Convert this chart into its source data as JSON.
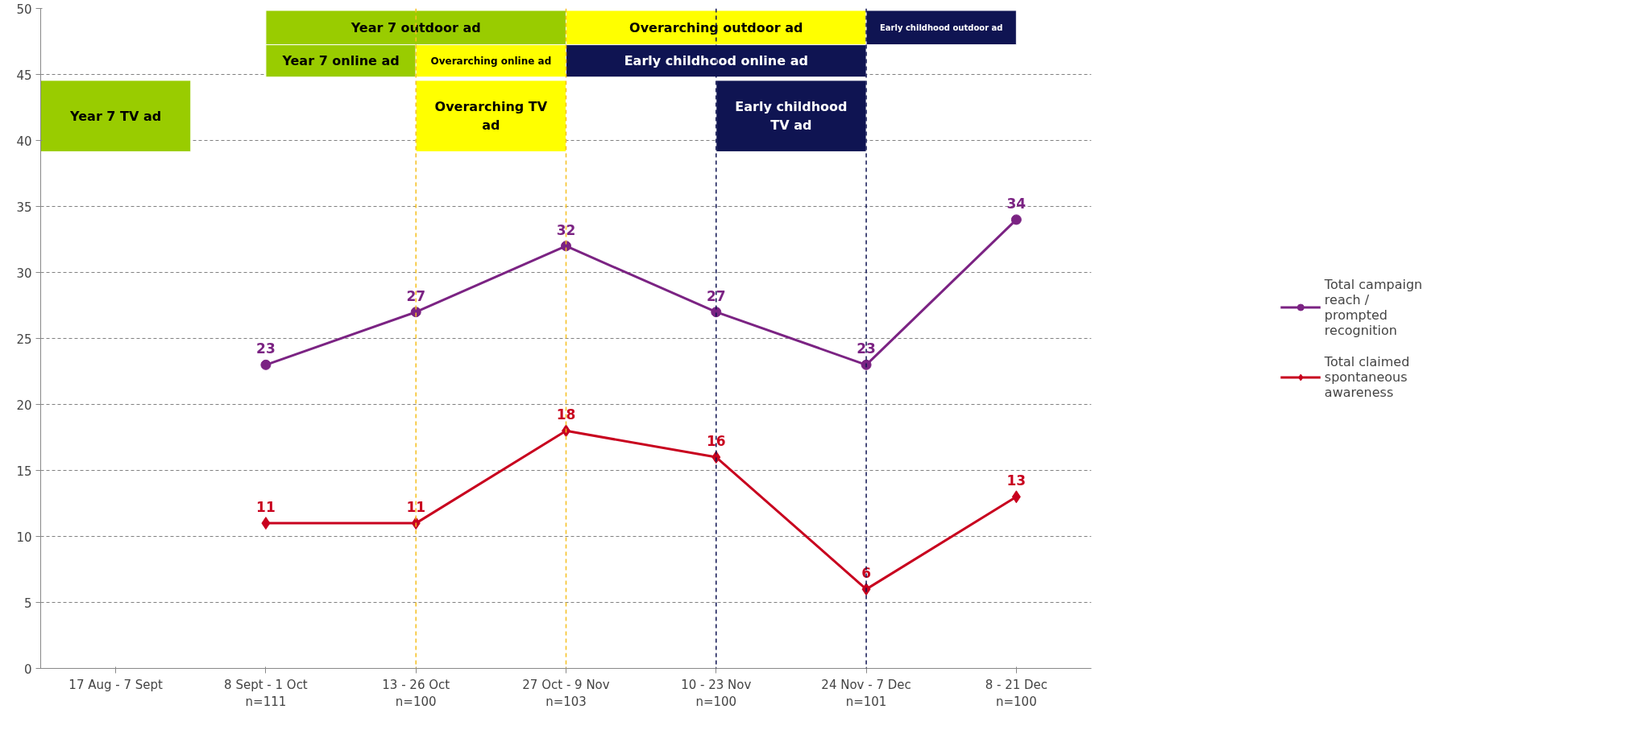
{
  "chart_data": {
    "type": "line",
    "categories": [
      "17 Aug - 7 Sept",
      "8 Sept - 1 Oct\nn=111",
      "13 - 26 Oct\nn=100",
      "27 Oct - 9 Nov\nn=103",
      "10 - 23 Nov\nn=100",
      "24 Nov - 7 Dec\nn=101",
      "8 - 21 Dec\nn=100"
    ],
    "ylim": [
      0,
      50
    ],
    "yticks": [
      0,
      5,
      10,
      15,
      20,
      25,
      30,
      35,
      40,
      45,
      50
    ],
    "grid": "y",
    "legend": "right",
    "data_labels": true,
    "line_style": "solid",
    "series": [
      {
        "name": "Total campaign reach / prompted recognition",
        "color": "#7b2383",
        "marker": "circle",
        "values": [
          null,
          23,
          27,
          32,
          27,
          23,
          34
        ]
      },
      {
        "name": "Total claimed spontaneous awareness",
        "color": "#c8001e",
        "marker": "diamond",
        "values": [
          null,
          11,
          11,
          18,
          16,
          6,
          13
        ]
      }
    ],
    "bands": [
      {
        "axis": "x",
        "from": "8 Sept - 1 Oct\nn=111",
        "to": "27 Oct - 9 Nov\nn=103",
        "label": "Year 7 outdoor ad",
        "color": "#99cc00"
      },
      {
        "axis": "x",
        "from": "27 Oct - 9 Nov\nn=103",
        "to": "24 Nov - 7 Dec\nn=101",
        "label": "Overarching outdoor ad",
        "color": "#ffff00"
      },
      {
        "axis": "x",
        "from": "24 Nov - 7 Dec\nn=101",
        "to": "8 - 21 Dec\nn=100",
        "label": "Early childhood outdoor ad",
        "color": "#0f1452"
      },
      {
        "axis": "x",
        "from": "8 Sept - 1 Oct\nn=111",
        "to": "13 - 26 Oct\nn=100",
        "label": "Year 7 online ad",
        "color": "#99cc00"
      },
      {
        "axis": "x",
        "from": "13 - 26 Oct\nn=100",
        "to": "27 Oct - 9 Nov\nn=103",
        "label": "Overarching online ad",
        "color": "#ffff00"
      },
      {
        "axis": "x",
        "from": "27 Oct - 9 Nov\nn=103",
        "to": "24 Nov - 7 Dec\nn=101",
        "label": "Early childhood online ad",
        "color": "#0f1452"
      },
      {
        "axis": "x",
        "from": "17 Aug - 7 Sept",
        "to": "17 Aug - 7 Sept",
        "label": "Year 7 TV ad",
        "color": "#99cc00"
      },
      {
        "axis": "x",
        "from": "13 - 26 Oct\nn=100",
        "to": "27 Oct - 9 Nov\nn=103",
        "label": "Overarching TV ad",
        "color": "#ffff00"
      },
      {
        "axis": "x",
        "from": "10 - 23 Nov\nn=100",
        "to": "24 Nov - 7 Dec\nn=101",
        "label": "Early childhood TV ad",
        "color": "#0f1452"
      }
    ],
    "ref_lines": [
      {
        "axis": "x",
        "value": "13 - 26 Oct\nn=100",
        "color": "#f5c020",
        "line_style": "dashed"
      },
      {
        "axis": "x",
        "value": "27 Oct - 9 Nov\nn=103",
        "color": "#f5c020",
        "line_style": "dashed"
      },
      {
        "axis": "x",
        "value": "10 - 23 Nov\nn=100",
        "color": "#0f1452",
        "line_style": "dashed"
      },
      {
        "axis": "x",
        "value": "24 Nov - 7 Dec\nn=101",
        "color": "#0f1452",
        "line_style": "dashed"
      }
    ]
  }
}
